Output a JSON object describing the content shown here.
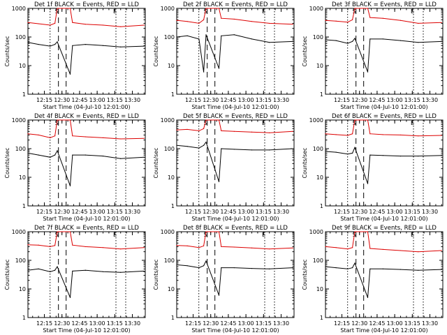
{
  "figure": {
    "ylabel": "Counts/sec",
    "xlabel": "Start Time (04-Jul-10 12:01:00)",
    "y_ticks": [
      "1",
      "10",
      "100",
      "1000"
    ],
    "x_ticks": [
      "12:15",
      "12:30",
      "12:45",
      "13:00",
      "13:15",
      "13:30"
    ],
    "colors": {
      "events": "#000000",
      "lld": "#dd0000"
    }
  },
  "chart_data": [
    {
      "type": "line",
      "title": "Det 1f BLACK = Events, RED = LLD",
      "xlabel": "Start Time (04-Jul-10 12:01:00)",
      "ylabel": "Counts/sec",
      "yscale": "log",
      "ylim": [
        1,
        1000
      ],
      "xlim": [
        "12:01",
        "13:41"
      ],
      "markers": {
        "S": "12:27",
        "E": "13:16"
      },
      "series": [
        {
          "name": "Events",
          "color": "#000000",
          "x": [
            "12:01",
            "12:10",
            "12:20",
            "12:24",
            "12:26",
            "12:37",
            "12:39",
            "12:50",
            "13:05",
            "13:20",
            "13:40"
          ],
          "values": [
            65,
            55,
            48,
            55,
            68,
            5,
            50,
            55,
            50,
            45,
            48
          ]
        },
        {
          "name": "LLD",
          "color": "#dd0000",
          "x": [
            "12:01",
            "12:10",
            "12:20",
            "12:24",
            "12:26",
            "12:37",
            "12:39",
            "12:50",
            "13:05",
            "13:20",
            "13:40"
          ],
          "values": [
            320,
            290,
            260,
            300,
            1000,
            1000,
            320,
            280,
            260,
            230,
            260
          ]
        }
      ]
    },
    {
      "type": "line",
      "title": "Det 2f BLACK = Events, RED = LLD",
      "xlabel": "Start Time (04-Jul-10 12:01:00)",
      "ylabel": "Counts/sec",
      "yscale": "log",
      "ylim": [
        1,
        1000
      ],
      "xlim": [
        "12:01",
        "13:41"
      ],
      "markers": {
        "S": "12:27",
        "E": "13:16"
      },
      "series": [
        {
          "name": "Events",
          "color": "#000000",
          "x": [
            "12:01",
            "12:10",
            "12:20",
            "12:24",
            "12:26",
            "12:37",
            "12:39",
            "12:50",
            "13:05",
            "13:20",
            "13:40"
          ],
          "values": [
            100,
            110,
            85,
            6,
            120,
            8,
            110,
            120,
            85,
            65,
            70
          ]
        },
        {
          "name": "LLD",
          "color": "#dd0000",
          "x": [
            "12:01",
            "12:10",
            "12:20",
            "12:24",
            "12:26",
            "12:37",
            "12:39",
            "12:50",
            "13:05",
            "13:20",
            "13:40"
          ],
          "values": [
            380,
            350,
            300,
            400,
            1000,
            1000,
            450,
            420,
            350,
            300,
            280
          ]
        }
      ]
    },
    {
      "type": "line",
      "title": "Det 3f BLACK = Events, RED = LLD",
      "xlabel": "Start Time (04-Jul-10 12:01:00)",
      "ylabel": "Counts/sec",
      "yscale": "log",
      "ylim": [
        1,
        1000
      ],
      "xlim": [
        "12:01",
        "13:41"
      ],
      "markers": {
        "S": "12:27",
        "E": "13:16"
      },
      "series": [
        {
          "name": "Events",
          "color": "#000000",
          "x": [
            "12:01",
            "12:10",
            "12:20",
            "12:24",
            "12:26",
            "12:37",
            "12:39",
            "12:50",
            "13:05",
            "13:20",
            "13:40"
          ],
          "values": [
            80,
            75,
            60,
            70,
            90,
            6,
            85,
            85,
            75,
            65,
            70
          ]
        },
        {
          "name": "LLD",
          "color": "#dd0000",
          "x": [
            "12:01",
            "12:10",
            "12:20",
            "12:24",
            "12:26",
            "12:37",
            "12:39",
            "12:50",
            "13:05",
            "13:20",
            "13:40"
          ],
          "values": [
            380,
            360,
            330,
            400,
            1000,
            1000,
            480,
            450,
            380,
            300,
            320
          ]
        }
      ]
    },
    {
      "type": "line",
      "title": "Det 4f BLACK = Events, RED = LLD",
      "xlabel": "Start Time (04-Jul-10 12:01:00)",
      "ylabel": "Counts/sec",
      "yscale": "log",
      "ylim": [
        1,
        1000
      ],
      "xlim": [
        "12:01",
        "13:41"
      ],
      "markers": {
        "S": "12:27",
        "E": "13:16"
      },
      "series": [
        {
          "name": "Events",
          "color": "#000000",
          "x": [
            "12:01",
            "12:10",
            "12:20",
            "12:24",
            "12:26",
            "12:37",
            "12:39",
            "12:50",
            "13:05",
            "13:20",
            "13:40"
          ],
          "values": [
            70,
            60,
            50,
            60,
            85,
            5,
            60,
            60,
            55,
            45,
            50
          ]
        },
        {
          "name": "LLD",
          "color": "#dd0000",
          "x": [
            "12:01",
            "12:10",
            "12:20",
            "12:24",
            "12:26",
            "12:37",
            "12:39",
            "12:50",
            "13:05",
            "13:20",
            "13:40"
          ],
          "values": [
            330,
            300,
            240,
            280,
            1000,
            1000,
            280,
            260,
            240,
            220,
            230
          ]
        }
      ]
    },
    {
      "type": "line",
      "title": "Det 5f BLACK = Events, RED = LLD",
      "xlabel": "Start Time (04-Jul-10 12:01:00)",
      "ylabel": "Counts/sec",
      "yscale": "log",
      "ylim": [
        1,
        1000
      ],
      "xlim": [
        "12:01",
        "13:41"
      ],
      "markers": {
        "S": "12:27",
        "E": "13:16"
      },
      "series": [
        {
          "name": "Events",
          "color": "#000000",
          "x": [
            "12:01",
            "12:10",
            "12:20",
            "12:24",
            "12:26",
            "12:37",
            "12:39",
            "12:50",
            "13:05",
            "13:20",
            "13:40"
          ],
          "values": [
            130,
            120,
            105,
            130,
            170,
            7,
            100,
            95,
            90,
            90,
            100
          ]
        },
        {
          "name": "LLD",
          "color": "#dd0000",
          "x": [
            "12:01",
            "12:10",
            "12:20",
            "12:24",
            "12:26",
            "12:37",
            "12:39",
            "12:50",
            "13:05",
            "13:20",
            "13:40"
          ],
          "values": [
            450,
            470,
            420,
            500,
            1000,
            1000,
            420,
            400,
            380,
            360,
            400
          ]
        }
      ]
    },
    {
      "type": "line",
      "title": "Det 6f BLACK = Events, RED = LLD",
      "xlabel": "Start Time (04-Jul-10 12:01:00)",
      "ylabel": "Counts/sec",
      "yscale": "log",
      "ylim": [
        1,
        1000
      ],
      "xlim": [
        "12:01",
        "13:41"
      ],
      "markers": {
        "S": "12:27",
        "E": "13:16"
      },
      "series": [
        {
          "name": "Events",
          "color": "#000000",
          "x": [
            "12:01",
            "12:10",
            "12:20",
            "12:24",
            "12:26",
            "12:37",
            "12:39",
            "12:50",
            "13:05",
            "13:20",
            "13:40"
          ],
          "values": [
            80,
            75,
            65,
            70,
            110,
            6,
            60,
            58,
            55,
            55,
            58
          ]
        },
        {
          "name": "LLD",
          "color": "#dd0000",
          "x": [
            "12:01",
            "12:10",
            "12:20",
            "12:24",
            "12:26",
            "12:37",
            "12:39",
            "12:50",
            "13:05",
            "13:20",
            "13:40"
          ],
          "values": [
            330,
            310,
            290,
            330,
            1000,
            1000,
            330,
            310,
            300,
            280,
            290
          ]
        }
      ]
    },
    {
      "type": "line",
      "title": "Det 7f BLACK = Events, RED = LLD",
      "xlabel": "Start Time (04-Jul-10 12:01:00)",
      "ylabel": "Counts/sec",
      "yscale": "log",
      "ylim": [
        1,
        1000
      ],
      "xlim": [
        "12:01",
        "13:41"
      ],
      "markers": {
        "S": "12:27",
        "E": "13:16"
      },
      "series": [
        {
          "name": "Events",
          "color": "#000000",
          "x": [
            "12:01",
            "12:10",
            "12:20",
            "12:24",
            "12:26",
            "12:37",
            "12:39",
            "12:50",
            "13:05",
            "13:20",
            "13:40"
          ],
          "values": [
            45,
            50,
            40,
            45,
            60,
            5,
            42,
            45,
            40,
            38,
            42
          ]
        },
        {
          "name": "LLD",
          "color": "#dd0000",
          "x": [
            "12:01",
            "12:10",
            "12:20",
            "12:24",
            "12:26",
            "12:37",
            "12:39",
            "12:50",
            "13:05",
            "13:20",
            "13:40"
          ],
          "values": [
            350,
            340,
            300,
            330,
            1000,
            1000,
            340,
            300,
            280,
            250,
            280
          ]
        }
      ]
    },
    {
      "type": "line",
      "title": "Det 8f BLACK = Events, RED = LLD",
      "xlabel": "Start Time (04-Jul-10 12:01:00)",
      "ylabel": "Counts/sec",
      "yscale": "log",
      "ylim": [
        1,
        1000
      ],
      "xlim": [
        "12:01",
        "13:41"
      ],
      "markers": {
        "S": "12:27",
        "E": "13:16"
      },
      "series": [
        {
          "name": "Events",
          "color": "#000000",
          "x": [
            "12:01",
            "12:10",
            "12:20",
            "12:24",
            "12:26",
            "12:37",
            "12:39",
            "12:50",
            "13:05",
            "13:20",
            "13:40"
          ],
          "values": [
            70,
            65,
            55,
            65,
            95,
            6,
            55,
            55,
            52,
            50,
            55
          ]
        },
        {
          "name": "LLD",
          "color": "#dd0000",
          "x": [
            "12:01",
            "12:10",
            "12:20",
            "12:24",
            "12:26",
            "12:37",
            "12:39",
            "12:50",
            "13:05",
            "13:20",
            "13:40"
          ],
          "values": [
            330,
            320,
            280,
            320,
            1000,
            1000,
            300,
            290,
            270,
            250,
            270
          ]
        }
      ]
    },
    {
      "type": "line",
      "title": "Det 9f BLACK = Events, RED = LLD",
      "xlabel": "Start Time (04-Jul-10 12:01:00)",
      "ylabel": "Counts/sec",
      "yscale": "log",
      "ylim": [
        1,
        1000
      ],
      "xlim": [
        "12:01",
        "13:41"
      ],
      "markers": {
        "S": "12:27",
        "E": "13:16"
      },
      "series": [
        {
          "name": "Events",
          "color": "#000000",
          "x": [
            "12:01",
            "12:10",
            "12:20",
            "12:24",
            "12:26",
            "12:37",
            "12:39",
            "12:50",
            "13:05",
            "13:20",
            "13:40"
          ],
          "values": [
            60,
            55,
            50,
            55,
            80,
            5,
            50,
            50,
            48,
            45,
            48
          ]
        },
        {
          "name": "LLD",
          "color": "#dd0000",
          "x": [
            "12:01",
            "12:10",
            "12:20",
            "12:24",
            "12:26",
            "12:37",
            "12:39",
            "12:50",
            "13:05",
            "13:20",
            "13:40"
          ],
          "values": [
            300,
            280,
            250,
            280,
            1000,
            1000,
            260,
            240,
            220,
            200,
            220
          ]
        }
      ]
    }
  ]
}
